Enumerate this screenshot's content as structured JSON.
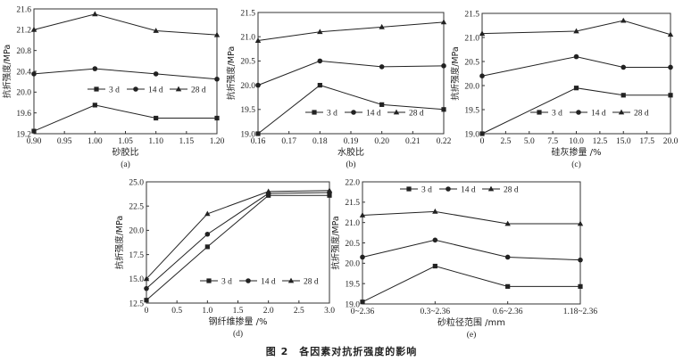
{
  "figure_caption": "图 2　各因素对抗折强度的影响",
  "chart_data": [
    {
      "id": "a",
      "type": "line",
      "panel_label": "(a)",
      "xlabel": "砂胶比",
      "ylabel": "抗折强度/MPa",
      "x": [
        0.9,
        1.0,
        1.1,
        1.2
      ],
      "xlim": [
        0.9,
        1.2
      ],
      "ylim": [
        19.2,
        21.6
      ],
      "xticks": [
        0.9,
        0.95,
        1.0,
        1.05,
        1.1,
        1.15,
        1.2
      ],
      "xtick_labels": [
        "0.90",
        "0.95",
        "1.00",
        "1.05",
        "1.10",
        "1.15",
        "1.20"
      ],
      "yticks": [
        19.2,
        19.6,
        20.0,
        20.4,
        20.8,
        21.2,
        21.6
      ],
      "ytick_labels": [
        "19.2",
        "19.6",
        "20.0",
        "20.4",
        "20.8",
        "21.2",
        "21.6"
      ],
      "legend_position": "lower-right",
      "series": [
        {
          "name": "3 d",
          "marker": "square",
          "values": [
            19.25,
            19.75,
            19.5,
            19.5
          ]
        },
        {
          "name": "14 d",
          "marker": "circle",
          "values": [
            20.35,
            20.45,
            20.35,
            20.25
          ]
        },
        {
          "name": "28 d",
          "marker": "triangle",
          "values": [
            21.2,
            21.5,
            21.18,
            21.1
          ]
        }
      ]
    },
    {
      "id": "b",
      "type": "line",
      "panel_label": "(b)",
      "xlabel": "水胶比",
      "ylabel": "抗折强度/MPa",
      "x": [
        0.16,
        0.18,
        0.2,
        0.22
      ],
      "xlim": [
        0.16,
        0.22
      ],
      "ylim": [
        19.0,
        21.5
      ],
      "xticks": [
        0.16,
        0.17,
        0.18,
        0.19,
        0.2,
        0.21,
        0.22
      ],
      "xtick_labels": [
        "0.16",
        "0.17",
        "0.18",
        "0.19",
        "0.20",
        "0.21",
        "0.22"
      ],
      "yticks": [
        19.0,
        19.5,
        20.0,
        20.5,
        21.0,
        21.5
      ],
      "ytick_labels": [
        "19.0",
        "19.5",
        "20.0",
        "20.5",
        "21.0",
        "21.5"
      ],
      "legend_position": "lower-right",
      "series": [
        {
          "name": "3 d",
          "marker": "square",
          "values": [
            19.0,
            20.0,
            19.6,
            19.5
          ]
        },
        {
          "name": "14 d",
          "marker": "circle",
          "values": [
            20.0,
            20.5,
            20.38,
            20.4
          ]
        },
        {
          "name": "28 d",
          "marker": "triangle",
          "values": [
            20.92,
            21.1,
            21.2,
            21.3
          ]
        }
      ]
    },
    {
      "id": "c",
      "type": "line",
      "panel_label": "(c)",
      "xlabel": "硅灰掺量 /%",
      "ylabel": "抗折强度/MPa",
      "x": [
        0,
        10,
        15,
        20
      ],
      "xlim": [
        0,
        20
      ],
      "ylim": [
        19.0,
        21.5
      ],
      "xticks": [
        0,
        2.5,
        5,
        7.5,
        10,
        12.5,
        15,
        17.5,
        20
      ],
      "xtick_labels": [
        "0",
        "2.5",
        "5.0",
        "7.5",
        "10.0",
        "12.5",
        "15.0",
        "17.5",
        "20.0"
      ],
      "yticks": [
        19.0,
        19.5,
        20.0,
        20.5,
        21.0,
        21.5
      ],
      "ytick_labels": [
        "19.0",
        "19.5",
        "20.0",
        "20.5",
        "21.0",
        "21.5"
      ],
      "legend_position": "lower-right",
      "series": [
        {
          "name": "3 d",
          "marker": "square",
          "values": [
            19.0,
            19.95,
            19.8,
            19.8
          ]
        },
        {
          "name": "14 d",
          "marker": "circle",
          "values": [
            20.2,
            20.6,
            20.38,
            20.38
          ]
        },
        {
          "name": "28 d",
          "marker": "triangle",
          "values": [
            21.08,
            21.13,
            21.35,
            21.06
          ]
        }
      ]
    },
    {
      "id": "d",
      "type": "line",
      "panel_label": "(d)",
      "xlabel": "钢纤维掺量 /%",
      "ylabel": "抗折强度/MPa",
      "x": [
        0,
        1,
        2,
        3
      ],
      "xlim": [
        0,
        3
      ],
      "ylim": [
        12.5,
        25.0
      ],
      "xticks": [
        0,
        0.5,
        1.0,
        1.5,
        2.0,
        2.5,
        3.0
      ],
      "xtick_labels": [
        "0",
        "0.5",
        "1.0",
        "1.5",
        "2.0",
        "2.5",
        "3.0"
      ],
      "yticks": [
        12.5,
        15.0,
        17.5,
        20.0,
        22.5,
        25.0
      ],
      "ytick_labels": [
        "12.5",
        "15.0",
        "17.5",
        "20.0",
        "22.5",
        "25.0"
      ],
      "legend_position": "lower-right",
      "series": [
        {
          "name": "3 d",
          "marker": "square",
          "values": [
            12.8,
            18.3,
            23.6,
            23.6
          ]
        },
        {
          "name": "14 d",
          "marker": "circle",
          "values": [
            14.0,
            19.6,
            23.8,
            23.9
          ]
        },
        {
          "name": "28 d",
          "marker": "triangle",
          "values": [
            15.0,
            21.7,
            24.0,
            24.1
          ]
        }
      ]
    },
    {
      "id": "e",
      "type": "line",
      "panel_label": "(e)",
      "xlabel": "砂粒径范围 /mm",
      "ylabel": "抗折强度/MPa",
      "categories": [
        "0~2.36",
        "0.3~2.36",
        "0.6~2.36",
        "1.18~2.36"
      ],
      "ylim": [
        19.0,
        22.0
      ],
      "yticks": [
        19.0,
        19.5,
        20.0,
        20.5,
        21.0,
        21.5,
        22.0
      ],
      "ytick_labels": [
        "19.0",
        "19.5",
        "20.0",
        "20.5",
        "21.0",
        "21.5",
        "22.0"
      ],
      "legend_position": "top",
      "series": [
        {
          "name": "3 d",
          "marker": "square",
          "values": [
            19.05,
            19.93,
            19.43,
            19.43
          ]
        },
        {
          "name": "14 d",
          "marker": "circle",
          "values": [
            20.15,
            20.57,
            20.15,
            20.08
          ]
        },
        {
          "name": "28 d",
          "marker": "triangle",
          "values": [
            21.18,
            21.27,
            20.97,
            20.97
          ]
        }
      ]
    }
  ]
}
